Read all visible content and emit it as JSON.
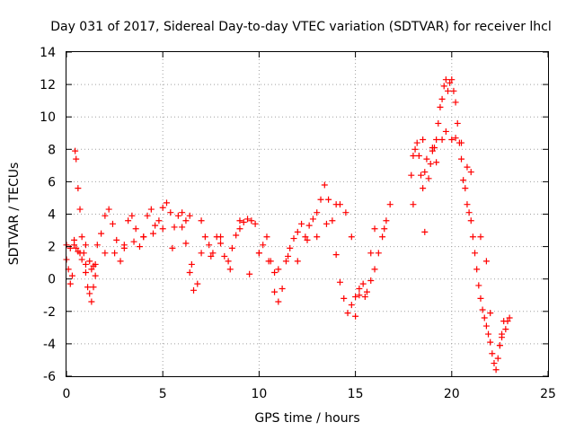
{
  "chart_data": {
    "type": "scatter",
    "title": "Day 031 of 2017, Sidereal Day-to-day VTEC variation (SDTVAR) for receiver lhcl",
    "xlabel": "GPS time / hours",
    "ylabel": "SDTVAR / TECUs",
    "xlim": [
      0,
      25
    ],
    "ylim": [
      -6,
      14
    ],
    "xticks": [
      0,
      5,
      10,
      15,
      20,
      25
    ],
    "xtick_labels": [
      "0",
      "5",
      "10",
      "15",
      "20",
      "25"
    ],
    "yticks": [
      -6,
      -4,
      -2,
      0,
      2,
      4,
      6,
      8,
      10,
      12,
      14
    ],
    "ytick_labels": [
      "-6",
      "-4",
      "-2",
      "0",
      "2",
      "4",
      "6",
      "8",
      "10",
      "12",
      "14"
    ],
    "grid": true,
    "marker": "plus",
    "color": "#ff0000",
    "series": [
      {
        "name": "SDTVAR",
        "x": [
          0.0,
          0.1,
          0.2,
          0.3,
          0.4,
          0.45,
          0.5,
          0.6,
          0.7,
          0.8,
          0.9,
          1.0,
          1.1,
          1.2,
          1.3,
          1.4,
          1.5,
          1.6,
          1.8,
          2.0,
          2.2,
          2.4,
          2.6,
          2.8,
          3.0,
          3.2,
          3.4,
          3.6,
          3.8,
          4.0,
          4.2,
          4.4,
          4.6,
          4.8,
          5.0,
          5.2,
          5.4,
          5.6,
          5.8,
          6.0,
          6.2,
          6.4,
          6.6,
          6.8,
          7.0,
          7.2,
          7.4,
          7.6,
          7.8,
          8.0,
          8.2,
          8.4,
          8.6,
          8.8,
          9.0,
          9.2,
          9.4,
          9.6,
          9.8,
          10.0,
          10.2,
          10.4,
          10.6,
          10.8,
          11.0,
          11.2,
          11.4,
          11.6,
          11.8,
          12.0,
          12.2,
          12.4,
          12.6,
          12.8,
          13.0,
          13.2,
          13.4,
          13.6,
          13.8,
          14.0,
          14.2,
          14.4,
          14.6,
          14.8,
          15.0,
          15.2,
          15.4,
          15.6,
          15.8,
          16.0,
          16.2,
          16.4,
          16.6,
          16.8,
          17.9,
          18.0,
          18.1,
          18.2,
          18.3,
          18.4,
          18.5,
          18.6,
          18.7,
          18.8,
          18.9,
          19.0,
          19.1,
          19.2,
          19.3,
          19.4,
          19.5,
          19.6,
          19.7,
          19.8,
          19.9,
          20.0,
          20.1,
          20.2,
          20.3,
          20.4,
          20.5,
          20.6,
          20.7,
          20.8,
          20.9,
          21.0,
          21.1,
          21.2,
          21.3,
          21.4,
          21.5,
          21.6,
          21.7,
          21.8,
          21.9,
          22.0,
          22.1,
          22.2,
          22.3,
          22.4,
          22.5,
          22.6,
          22.7,
          22.8,
          22.9,
          23.0,
          0.0,
          0.2,
          0.4,
          0.6,
          0.8,
          1.0,
          1.2,
          1.4,
          2.0,
          3.0,
          4.0,
          5.0,
          6.0,
          6.2,
          6.4,
          7.0,
          8.0,
          9.0,
          10.0,
          10.5,
          11.0,
          12.0,
          13.0,
          14.0,
          14.5,
          15.0,
          15.5,
          16.0,
          18.0,
          18.5,
          19.0,
          19.5,
          20.0,
          20.5,
          21.0,
          21.5,
          22.0,
          22.5,
          0.5,
          0.7,
          1.0,
          1.3,
          1.5,
          2.5,
          3.5,
          4.5,
          5.5,
          6.5,
          7.5,
          8.5,
          9.5,
          10.8,
          11.5,
          12.5,
          13.5,
          14.2,
          14.8,
          15.2,
          15.8,
          16.5,
          18.6,
          19.2,
          19.7,
          20.2,
          20.8,
          21.8,
          22.6
        ],
        "y": [
          1.2,
          0.6,
          -0.3,
          0.2,
          2.4,
          7.9,
          7.4,
          5.6,
          4.3,
          2.6,
          1.6,
          0.4,
          -0.5,
          -0.9,
          -1.4,
          -0.5,
          0.9,
          2.1,
          2.8,
          3.9,
          4.3,
          3.4,
          2.4,
          1.1,
          2.1,
          3.6,
          3.9,
          3.1,
          2.0,
          2.6,
          3.9,
          4.3,
          3.3,
          3.6,
          4.4,
          4.7,
          4.1,
          3.2,
          3.9,
          3.2,
          2.2,
          0.4,
          -0.7,
          -0.3,
          1.6,
          2.6,
          2.1,
          1.6,
          2.6,
          2.2,
          1.4,
          1.1,
          1.9,
          2.7,
          3.1,
          3.5,
          3.7,
          3.6,
          3.4,
          1.6,
          2.1,
          2.6,
          1.1,
          -0.8,
          -1.4,
          -0.6,
          1.1,
          1.9,
          2.5,
          2.9,
          3.4,
          2.6,
          3.3,
          3.7,
          4.1,
          4.9,
          5.8,
          4.9,
          3.6,
          1.5,
          -0.2,
          -1.2,
          -2.1,
          -1.6,
          -2.3,
          -1.0,
          -0.3,
          -0.8,
          -0.1,
          0.6,
          1.6,
          2.6,
          3.6,
          4.6,
          6.4,
          7.6,
          8.0,
          8.4,
          7.6,
          6.4,
          5.6,
          6.6,
          7.4,
          6.2,
          7.1,
          7.9,
          8.1,
          8.6,
          9.6,
          10.6,
          11.1,
          11.9,
          12.3,
          11.6,
          12.1,
          12.3,
          11.6,
          10.9,
          9.6,
          8.4,
          7.4,
          6.1,
          5.6,
          4.6,
          4.1,
          3.6,
          2.6,
          1.6,
          0.6,
          -0.4,
          -1.2,
          -1.9,
          -2.4,
          -2.9,
          -3.4,
          -3.9,
          -4.6,
          -5.2,
          -5.6,
          -4.9,
          -4.1,
          -3.4,
          -2.6,
          -3.1,
          -2.6,
          -2.4,
          2.1,
          1.9,
          2.1,
          1.7,
          1.2,
          0.9,
          1.1,
          0.8,
          1.6,
          1.9,
          2.6,
          3.1,
          4.1,
          3.6,
          3.9,
          3.6,
          2.6,
          3.6,
          1.6,
          1.1,
          0.6,
          1.1,
          2.6,
          4.6,
          4.1,
          -1.1,
          -1.1,
          3.1,
          4.6,
          8.6,
          8.1,
          8.6,
          8.6,
          8.4,
          6.6,
          2.6,
          -2.1,
          -4.1,
          1.9,
          1.6,
          2.1,
          0.6,
          0.2,
          1.6,
          2.3,
          2.8,
          1.9,
          0.9,
          1.4,
          0.6,
          0.3,
          0.4,
          1.4,
          2.4,
          3.4,
          4.6,
          2.6,
          -0.6,
          1.6,
          3.1,
          2.9,
          7.2,
          9.1,
          8.7,
          6.9,
          1.1,
          -3.6
        ]
      }
    ]
  }
}
